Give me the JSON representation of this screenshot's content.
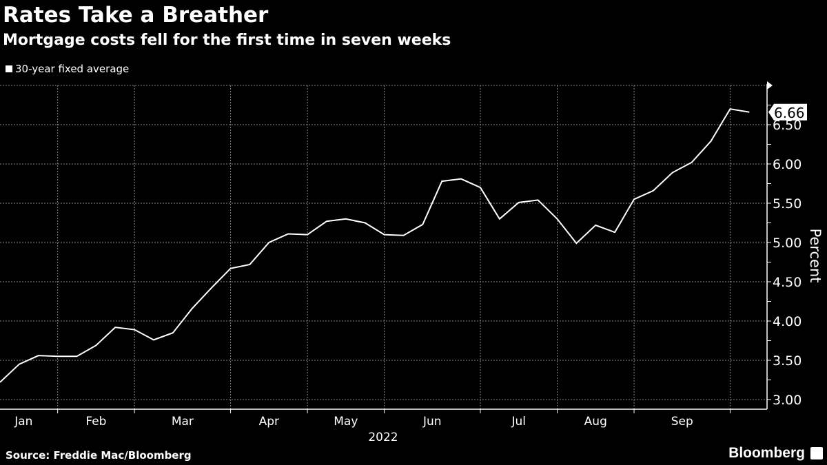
{
  "header": {
    "title": "Rates Take a Breather",
    "subtitle": "Mortgage costs fell for the first time in seven weeks"
  },
  "footer": {
    "source": "Source: Freddie Mac/Bloomberg",
    "brand": "Bloomberg"
  },
  "chart_data": {
    "type": "line",
    "title": "Rates Take a Breather",
    "subtitle": "Mortgage costs fell for the first time in seven weeks",
    "ylabel": "Percent",
    "xlabel": "2022",
    "ylim": [
      3.0,
      7.0
    ],
    "yticks": [
      "3.00",
      "3.50",
      "4.00",
      "4.50",
      "5.00",
      "5.50",
      "6.00",
      "6.50"
    ],
    "xtick_labels": [
      "Jan",
      "Feb",
      "Mar",
      "Apr",
      "May",
      "Jun",
      "Jul",
      "Aug",
      "Sep"
    ],
    "grid": true,
    "legend_placement": "top-left",
    "line_color": "#ffffff",
    "background": "#000000",
    "last_value_label": "6.66",
    "x": [
      "2022-01-06",
      "2022-01-13",
      "2022-01-20",
      "2022-01-27",
      "2022-02-03",
      "2022-02-10",
      "2022-02-17",
      "2022-02-24",
      "2022-03-03",
      "2022-03-10",
      "2022-03-17",
      "2022-03-24",
      "2022-03-31",
      "2022-04-07",
      "2022-04-14",
      "2022-04-21",
      "2022-04-28",
      "2022-05-05",
      "2022-05-12",
      "2022-05-19",
      "2022-05-26",
      "2022-06-02",
      "2022-06-09",
      "2022-06-16",
      "2022-06-23",
      "2022-06-30",
      "2022-07-07",
      "2022-07-14",
      "2022-07-21",
      "2022-07-28",
      "2022-08-04",
      "2022-08-11",
      "2022-08-18",
      "2022-08-25",
      "2022-09-01",
      "2022-09-08",
      "2022-09-15",
      "2022-09-22",
      "2022-09-29",
      "2022-10-06"
    ],
    "series": [
      {
        "name": "30-year fixed average",
        "values": [
          3.22,
          3.45,
          3.56,
          3.55,
          3.55,
          3.69,
          3.92,
          3.89,
          3.76,
          3.85,
          4.16,
          4.42,
          4.67,
          4.72,
          5.0,
          5.11,
          5.1,
          5.27,
          5.3,
          5.25,
          5.1,
          5.09,
          5.23,
          5.78,
          5.81,
          5.7,
          5.3,
          5.51,
          5.54,
          5.3,
          4.99,
          5.22,
          5.13,
          5.55,
          5.66,
          5.89,
          6.02,
          6.29,
          6.7,
          6.66
        ]
      }
    ]
  }
}
